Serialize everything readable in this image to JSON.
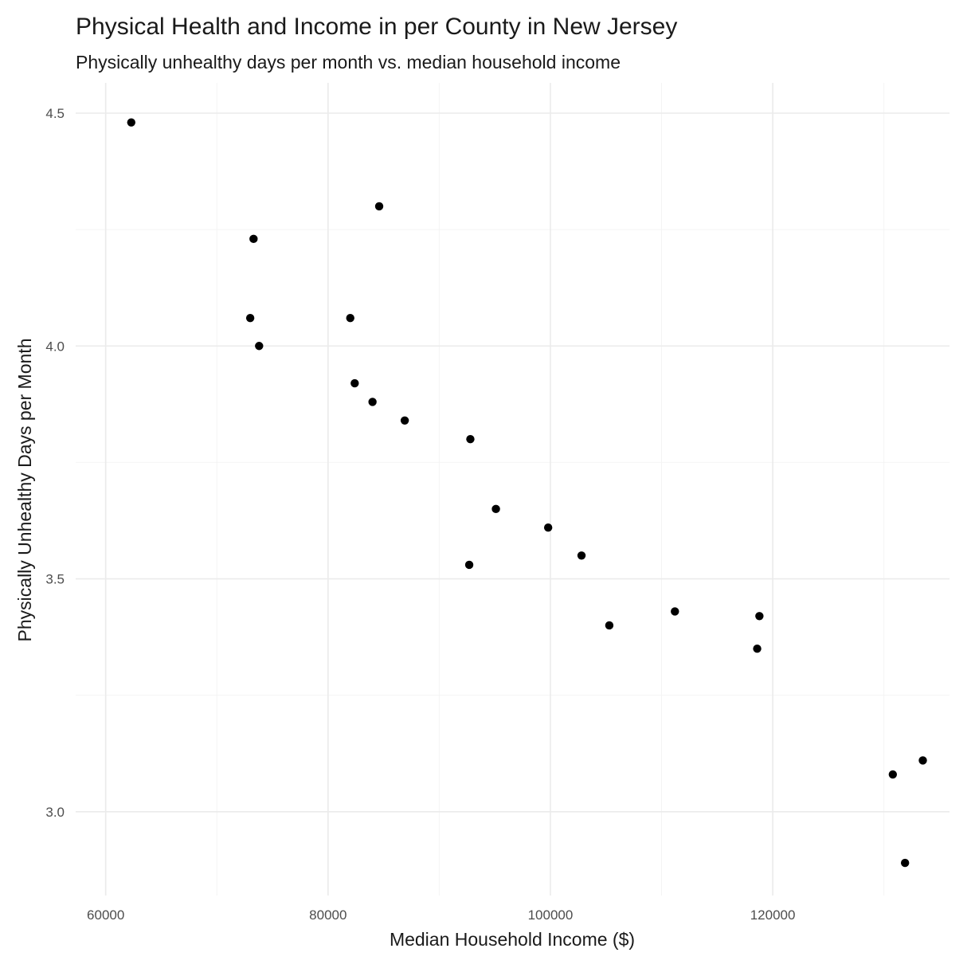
{
  "chart_data": {
    "type": "scatter",
    "title": "Physical Health and Income in per County in New Jersey",
    "subtitle": "Physically unhealthy days per month vs. median household income",
    "xlabel": "Median Household Income ($)",
    "ylabel": "Physically Unhealthy Days per Month",
    "xlim": [
      57300,
      135900
    ],
    "ylim": [
      2.82,
      4.565
    ],
    "x_ticks": [
      60000,
      80000,
      100000,
      120000
    ],
    "x_tick_labels": [
      "60000",
      "80000",
      "100000",
      "120000"
    ],
    "x_minor_ticks": [
      70000,
      90000,
      110000,
      130000
    ],
    "y_ticks": [
      3.0,
      3.5,
      4.0,
      4.5
    ],
    "y_tick_labels": [
      "3.0",
      "3.5",
      "4.0",
      "4.5"
    ],
    "y_minor_ticks": [
      3.25,
      3.75,
      4.25
    ],
    "grid": true,
    "legend": "none",
    "point_color": "#000000",
    "points": [
      {
        "x": 62300,
        "y": 4.48
      },
      {
        "x": 84600,
        "y": 4.3
      },
      {
        "x": 73300,
        "y": 4.23
      },
      {
        "x": 73000,
        "y": 4.06
      },
      {
        "x": 82000,
        "y": 4.06
      },
      {
        "x": 73800,
        "y": 4.0
      },
      {
        "x": 82400,
        "y": 3.92
      },
      {
        "x": 84000,
        "y": 3.88
      },
      {
        "x": 86900,
        "y": 3.84
      },
      {
        "x": 92800,
        "y": 3.8
      },
      {
        "x": 95100,
        "y": 3.65
      },
      {
        "x": 99800,
        "y": 3.61
      },
      {
        "x": 102800,
        "y": 3.55
      },
      {
        "x": 92700,
        "y": 3.53
      },
      {
        "x": 105300,
        "y": 3.4
      },
      {
        "x": 111200,
        "y": 3.43
      },
      {
        "x": 118800,
        "y": 3.42
      },
      {
        "x": 118600,
        "y": 3.35
      },
      {
        "x": 133500,
        "y": 3.11
      },
      {
        "x": 130800,
        "y": 3.08
      },
      {
        "x": 131900,
        "y": 2.89
      }
    ]
  }
}
